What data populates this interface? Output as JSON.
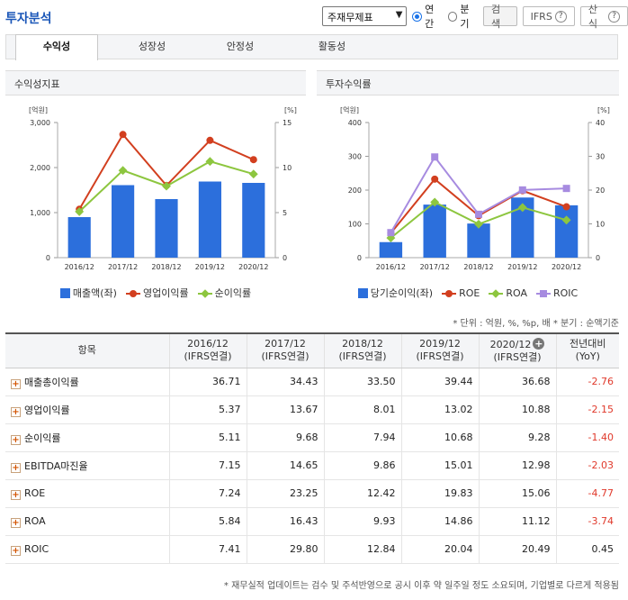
{
  "header": {
    "title": "투자분석",
    "select_value": "주재무제표",
    "radio_annual": "연간",
    "radio_quarter": "분기",
    "search_button": "검색",
    "ifrs_button": "IFRS",
    "formula_button": "산식"
  },
  "tabs": [
    "수익성",
    "성장성",
    "안정성",
    "활동성"
  ],
  "charts": {
    "left_title": "수익성지표",
    "right_title": "투자수익률"
  },
  "chart_data": [
    {
      "type": "bar",
      "title": "수익성지표",
      "categories": [
        "2016/12",
        "2017/12",
        "2018/12",
        "2019/12",
        "2020/12"
      ],
      "ylabel_left": "[억원]",
      "ylabel_right": "[%]",
      "ylim_left": [
        0,
        3000
      ],
      "ylim_right": [
        0,
        15
      ],
      "yticks_left": [
        "0",
        "1,000",
        "2,000",
        "3,000"
      ],
      "yticks_right": [
        "0",
        "5",
        "10",
        "15"
      ],
      "series": [
        {
          "name": "매출액(좌)",
          "kind": "bar",
          "axis": "left",
          "color": "#2c6fdc",
          "values": [
            900,
            1610,
            1300,
            1690,
            1660
          ]
        },
        {
          "name": "영업이익률",
          "kind": "line",
          "axis": "right",
          "marker": "circle",
          "color": "#d23f1f",
          "values": [
            5.37,
            13.67,
            8.01,
            13.02,
            10.88
          ]
        },
        {
          "name": "순이익률",
          "kind": "line",
          "axis": "right",
          "marker": "diamond",
          "color": "#8dc63f",
          "values": [
            5.11,
            9.68,
            7.94,
            10.68,
            9.28
          ]
        }
      ],
      "legend": "bottom"
    },
    {
      "type": "bar",
      "title": "투자수익률",
      "categories": [
        "2016/12",
        "2017/12",
        "2018/12",
        "2019/12",
        "2020/12"
      ],
      "ylabel_left": "[억원]",
      "ylabel_right": "[%]",
      "ylim_left": [
        0,
        400
      ],
      "ylim_right": [
        0,
        40
      ],
      "yticks_left": [
        "0",
        "100",
        "200",
        "300",
        "400"
      ],
      "yticks_right": [
        "0",
        "10",
        "20",
        "30",
        "40"
      ],
      "series": [
        {
          "name": "당기순이익(좌)",
          "kind": "bar",
          "axis": "left",
          "color": "#2c6fdc",
          "values": [
            46,
            157,
            101,
            178,
            155
          ]
        },
        {
          "name": "ROE",
          "kind": "line",
          "axis": "right",
          "marker": "circle",
          "color": "#d23f1f",
          "values": [
            7.24,
            23.25,
            12.42,
            19.83,
            15.06
          ]
        },
        {
          "name": "ROA",
          "kind": "line",
          "axis": "right",
          "marker": "diamond",
          "color": "#8dc63f",
          "values": [
            5.84,
            16.43,
            9.93,
            14.86,
            11.12
          ]
        },
        {
          "name": "ROIC",
          "kind": "line",
          "axis": "right",
          "marker": "square",
          "color": "#a78be0",
          "values": [
            7.41,
            29.8,
            12.84,
            20.04,
            20.49
          ]
        }
      ],
      "legend": "bottom"
    }
  ],
  "unit_note": "* 단위 : 억원, %, %p, 배   * 분기 : 순액기준",
  "table": {
    "header_item": "항목",
    "columns": [
      {
        "l1": "2016/12",
        "l2": "(IFRS연결)"
      },
      {
        "l1": "2017/12",
        "l2": "(IFRS연결)"
      },
      {
        "l1": "2018/12",
        "l2": "(IFRS연결)"
      },
      {
        "l1": "2019/12",
        "l2": "(IFRS연결)"
      },
      {
        "l1": "2020/12",
        "l2": "(IFRS연결)"
      },
      {
        "l1": "전년대비",
        "l2": "(YoY)"
      }
    ],
    "rows": [
      {
        "name": "매출총이익률",
        "values": [
          "36.71",
          "34.43",
          "33.50",
          "39.44",
          "36.68",
          "-2.76"
        ]
      },
      {
        "name": "영업이익률",
        "values": [
          "5.37",
          "13.67",
          "8.01",
          "13.02",
          "10.88",
          "-2.15"
        ]
      },
      {
        "name": "순이익률",
        "values": [
          "5.11",
          "9.68",
          "7.94",
          "10.68",
          "9.28",
          "-1.40"
        ]
      },
      {
        "name": "EBITDA마진율",
        "values": [
          "7.15",
          "14.65",
          "9.86",
          "15.01",
          "12.98",
          "-2.03"
        ]
      },
      {
        "name": "ROE",
        "values": [
          "7.24",
          "23.25",
          "12.42",
          "19.83",
          "15.06",
          "-4.77"
        ]
      },
      {
        "name": "ROA",
        "values": [
          "5.84",
          "16.43",
          "9.93",
          "14.86",
          "11.12",
          "-3.74"
        ]
      },
      {
        "name": "ROIC",
        "values": [
          "7.41",
          "29.80",
          "12.84",
          "20.04",
          "20.49",
          "0.45"
        ]
      }
    ]
  },
  "footnote": "* 재무실적 업데이트는 검수 및 주석반영으로 공시 이후 약 일주일 정도 소요되며, 기업별로 다르게 적용됨"
}
